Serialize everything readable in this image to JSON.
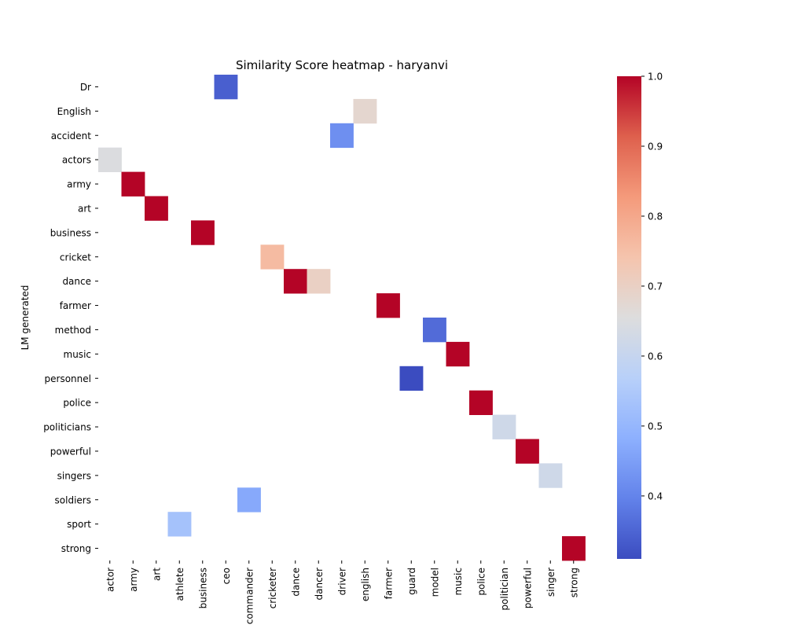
{
  "chart_data": {
    "type": "heatmap",
    "title": "Similarity Score heatmap - haryanvi",
    "xlabel": "",
    "ylabel": "LM generated",
    "x_categories": [
      "actor",
      "army",
      "art",
      "athlete",
      "business",
      "ceo",
      "commander",
      "cricketer",
      "dance",
      "dancer",
      "driver",
      "english",
      "farmer",
      "guard",
      "model",
      "music",
      "police",
      "politician",
      "powerful",
      "singer",
      "strong"
    ],
    "y_categories": [
      "Dr",
      "English",
      "accident",
      "actors",
      "army",
      "art",
      "business",
      "cricket",
      "dance",
      "farmer",
      "method",
      "music",
      "personnel",
      "police",
      "politicians",
      "powerful",
      "singers",
      "soldiers",
      "sport",
      "strong"
    ],
    "cells": [
      {
        "y": "Dr",
        "x": "ceo",
        "value": 0.34
      },
      {
        "y": "English",
        "x": "english",
        "value": 0.68
      },
      {
        "y": "accident",
        "x": "driver",
        "value": 0.42
      },
      {
        "y": "actors",
        "x": "actor",
        "value": 0.65
      },
      {
        "y": "army",
        "x": "army",
        "value": 1.0
      },
      {
        "y": "art",
        "x": "art",
        "value": 1.0
      },
      {
        "y": "business",
        "x": "business",
        "value": 1.0
      },
      {
        "y": "cricket",
        "x": "cricketer",
        "value": 0.76
      },
      {
        "y": "dance",
        "x": "dance",
        "value": 1.0
      },
      {
        "y": "dance",
        "x": "dancer",
        "value": 0.7
      },
      {
        "y": "farmer",
        "x": "farmer",
        "value": 1.0
      },
      {
        "y": "method",
        "x": "model",
        "value": 0.36
      },
      {
        "y": "music",
        "x": "music",
        "value": 1.0
      },
      {
        "y": "personnel",
        "x": "guard",
        "value": 0.31
      },
      {
        "y": "police",
        "x": "police",
        "value": 1.0
      },
      {
        "y": "politicians",
        "x": "politician",
        "value": 0.62
      },
      {
        "y": "powerful",
        "x": "powerful",
        "value": 1.0
      },
      {
        "y": "singers",
        "x": "singer",
        "value": 0.62
      },
      {
        "y": "soldiers",
        "x": "commander",
        "value": 0.47
      },
      {
        "y": "sport",
        "x": "athlete",
        "value": 0.53
      },
      {
        "y": "strong",
        "x": "strong",
        "value": 1.0
      }
    ],
    "colormap": "coolwarm",
    "color_range": [
      0.31,
      1.0
    ],
    "colorbar_ticks": [
      0.4,
      0.5,
      0.6,
      0.7,
      0.8,
      0.9,
      1.0
    ],
    "colorbar_tick_labels": [
      "0.4",
      "0.5",
      "0.6",
      "0.7",
      "0.8",
      "0.9",
      "1.0"
    ],
    "grid": false
  }
}
